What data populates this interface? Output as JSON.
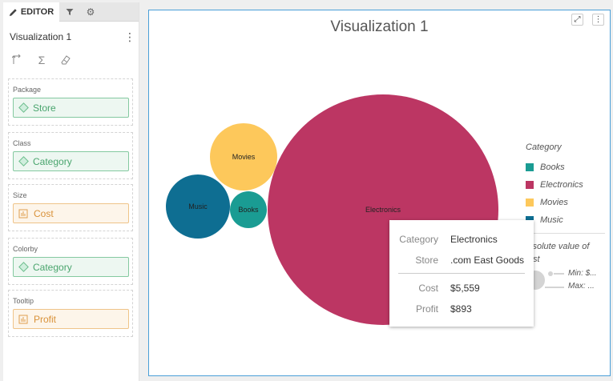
{
  "editor": {
    "tab_label": "EDITOR",
    "viz_name": "Visualization 1",
    "shelves": [
      {
        "label": "Package",
        "field": "Store",
        "kind": "dimension"
      },
      {
        "label": "Class",
        "field": "Category",
        "kind": "dimension"
      },
      {
        "label": "Size",
        "field": "Cost",
        "kind": "measure"
      },
      {
        "label": "Colorby",
        "field": "Category",
        "kind": "dimension"
      },
      {
        "label": "Tooltip",
        "field": "Profit",
        "kind": "measure"
      }
    ]
  },
  "viz": {
    "title": "Visualization 1",
    "legend_title": "Category",
    "legend": [
      {
        "name": "Books",
        "color": "#1a9c93"
      },
      {
        "name": "Electronics",
        "color": "#bc3663"
      },
      {
        "name": "Movies",
        "color": "#fdc85b"
      },
      {
        "name": "Music",
        "color": "#0e6e92"
      }
    ],
    "size_legend_title": "Absolute value of Cost",
    "size_legend_min": "Min: $...",
    "size_legend_max": "Max: ...",
    "bubbles": [
      {
        "name": "Music",
        "color": "#0e6e92"
      },
      {
        "name": "Movies",
        "color": "#fdc85b"
      },
      {
        "name": "Books",
        "color": "#1a9c93"
      },
      {
        "name": "Electronics",
        "color": "#bc3663"
      }
    ]
  },
  "tooltip": {
    "rows": [
      {
        "key": "Category",
        "value": "Electronics"
      },
      {
        "key": "Store",
        "value": ".com East Goods"
      },
      {
        "key": "Cost",
        "value": "$5,559"
      },
      {
        "key": "Profit",
        "value": "$893"
      }
    ]
  }
}
